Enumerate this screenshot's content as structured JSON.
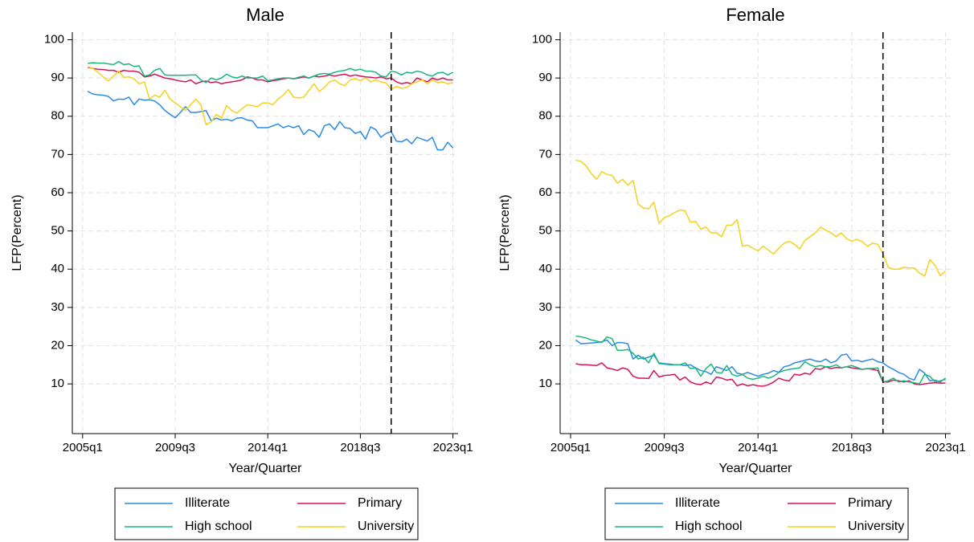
{
  "chart_data": [
    {
      "type": "line",
      "title": "Male",
      "x_label": "Year/Quarter",
      "y_label": "LFP(Percent)",
      "x": [
        2005.25,
        2005.5,
        2005.75,
        2006,
        2006.25,
        2006.5,
        2006.75,
        2007,
        2007.25,
        2007.5,
        2007.75,
        2008,
        2008.25,
        2008.5,
        2008.75,
        2009,
        2009.25,
        2009.5,
        2009.75,
        2010,
        2010.25,
        2010.5,
        2010.75,
        2011,
        2011.25,
        2011.5,
        2011.75,
        2012,
        2012.25,
        2012.5,
        2012.75,
        2013,
        2013.25,
        2013.5,
        2013.75,
        2014,
        2014.25,
        2014.5,
        2014.75,
        2015,
        2015.25,
        2015.5,
        2015.75,
        2016,
        2016.25,
        2016.5,
        2016.75,
        2017,
        2017.25,
        2017.5,
        2017.75,
        2018,
        2018.25,
        2018.5,
        2018.75,
        2019,
        2019.25,
        2019.5,
        2019.75,
        2020,
        2020.25,
        2020.5,
        2020.75,
        2021,
        2021.25,
        2021.5,
        2021.75,
        2022,
        2022.25,
        2022.5,
        2022.75,
        2023
      ],
      "xlim": [
        2004.5,
        2023.25
      ],
      "xticks": [
        {
          "value": 2005,
          "label": "2005q1"
        },
        {
          "value": 2009.5,
          "label": "2009q3"
        },
        {
          "value": 2014,
          "label": "2014q1"
        },
        {
          "value": 2018.5,
          "label": "2018q3"
        },
        {
          "value": 2023,
          "label": "2023q1"
        }
      ],
      "ylim": [
        -3,
        102
      ],
      "yticks": [
        10,
        20,
        30,
        40,
        50,
        60,
        70,
        80,
        90,
        100
      ],
      "grid": true,
      "vline": 2020,
      "series": [
        {
          "name": "Illiterate",
          "color": "#2a8ae8",
          "values": [
            86.5,
            85.8,
            85.6,
            85.5,
            85.2,
            84.0,
            84.5,
            84.4,
            85.0,
            83.0,
            84.5,
            84.2,
            84.3,
            84.0,
            83.0,
            81.5,
            80.5,
            79.6,
            81.0,
            82.5,
            81.0,
            81.0,
            81.2,
            81.5,
            78.8,
            79.5,
            79.0,
            79.2,
            78.8,
            79.5,
            79.6,
            79.0,
            78.8,
            77.0,
            77.0,
            77.0,
            77.5,
            78.0,
            77.0,
            77.5,
            77.0,
            77.5,
            75.2,
            76.5,
            76.0,
            74.5,
            77.5,
            78.0,
            76.5,
            78.6,
            77.0,
            76.8,
            75.5,
            76.0,
            74.0,
            77.2,
            76.5,
            74.5,
            75.5,
            76.0,
            73.5,
            73.3,
            74.0,
            72.8,
            74.5,
            74.0,
            73.5,
            74.5,
            71.2,
            71.2,
            73.2,
            71.7
          ]
        },
        {
          "name": "Primary",
          "color": "#d4145a",
          "values": [
            92.8,
            92.5,
            92.3,
            92.2,
            92.0,
            92.0,
            91.5,
            92.0,
            91.8,
            91.8,
            91.5,
            90.3,
            90.5,
            91.0,
            90.5,
            90.0,
            89.8,
            89.5,
            89.2,
            89.0,
            89.5,
            88.5,
            89.0,
            89.2,
            88.8,
            89.0,
            88.5,
            88.8,
            89.0,
            89.2,
            89.5,
            90.3,
            90.0,
            89.5,
            89.5,
            89.0,
            89.3,
            89.5,
            89.8,
            90.0,
            89.8,
            90.0,
            90.3,
            90.0,
            90.5,
            90.3,
            90.5,
            90.8,
            90.5,
            90.8,
            91.0,
            90.5,
            90.8,
            90.5,
            90.3,
            90.2,
            90.0,
            90.3,
            89.8,
            90.0,
            89.0,
            88.5,
            88.8,
            88.5,
            90.0,
            89.5,
            89.0,
            90.0,
            89.5,
            90.0,
            89.5,
            89.5
          ]
        },
        {
          "name": "High school",
          "color": "#17b87a",
          "values": [
            93.8,
            94.0,
            93.9,
            93.9,
            93.7,
            93.5,
            94.3,
            93.5,
            93.7,
            93.0,
            93.2,
            90.5,
            90.8,
            92.0,
            92.5,
            90.8,
            90.7,
            90.7,
            90.7,
            90.7,
            90.8,
            90.8,
            89.5,
            88.8,
            90.0,
            89.5,
            90.0,
            91.0,
            90.3,
            90.0,
            90.5,
            90.0,
            90.0,
            90.0,
            90.5,
            89.3,
            89.5,
            89.8,
            90.0,
            90.0,
            89.8,
            90.2,
            90.5,
            90.0,
            90.5,
            91.0,
            91.2,
            91.0,
            91.5,
            91.8,
            92.0,
            92.5,
            92.0,
            92.3,
            91.8,
            91.8,
            91.5,
            90.5,
            90.3,
            91.8,
            91.5,
            90.8,
            91.5,
            91.3,
            91.8,
            91.5,
            90.8,
            90.5,
            91.3,
            91.5,
            90.8,
            91.5
          ]
        },
        {
          "name": "University",
          "color": "#f5d21c",
          "values": [
            93.0,
            92.5,
            91.5,
            90.3,
            89.2,
            90.5,
            91.8,
            90.2,
            90.3,
            89.8,
            88.5,
            89.0,
            84.5,
            85.5,
            85.0,
            86.8,
            84.5,
            83.5,
            82.5,
            81.5,
            83.0,
            84.5,
            83.0,
            77.8,
            78.5,
            80.5,
            79.5,
            82.8,
            81.5,
            80.8,
            82.0,
            83.0,
            82.8,
            82.5,
            83.5,
            83.5,
            83.0,
            84.5,
            85.5,
            87.0,
            85.0,
            84.8,
            85.0,
            86.8,
            88.5,
            86.5,
            87.5,
            89.0,
            89.5,
            88.5,
            88.0,
            89.5,
            89.8,
            89.3,
            90.0,
            89.0,
            89.5,
            89.0,
            88.7,
            87.0,
            87.8,
            87.3,
            87.5,
            88.5,
            89.0,
            89.5,
            88.5,
            89.5,
            88.8,
            89.0,
            88.5,
            88.8
          ]
        }
      ]
    },
    {
      "type": "line",
      "title": "Female",
      "x_label": "Year/Quarter",
      "y_label": "LFP(Percent)",
      "x": [
        2005.25,
        2005.5,
        2005.75,
        2006,
        2006.25,
        2006.5,
        2006.75,
        2007,
        2007.25,
        2007.5,
        2007.75,
        2008,
        2008.25,
        2008.5,
        2008.75,
        2009,
        2009.25,
        2009.5,
        2009.75,
        2010,
        2010.25,
        2010.5,
        2010.75,
        2011,
        2011.25,
        2011.5,
        2011.75,
        2012,
        2012.25,
        2012.5,
        2012.75,
        2013,
        2013.25,
        2013.5,
        2013.75,
        2014,
        2014.25,
        2014.5,
        2014.75,
        2015,
        2015.25,
        2015.5,
        2015.75,
        2016,
        2016.25,
        2016.5,
        2016.75,
        2017,
        2017.25,
        2017.5,
        2017.75,
        2018,
        2018.25,
        2018.5,
        2018.75,
        2019,
        2019.25,
        2019.5,
        2019.75,
        2020,
        2020.25,
        2020.5,
        2020.75,
        2021,
        2021.25,
        2021.5,
        2021.75,
        2022,
        2022.25,
        2022.5,
        2022.75,
        2023
      ],
      "xlim": [
        2004.5,
        2023.25
      ],
      "xticks": [
        {
          "value": 2005,
          "label": "2005q1"
        },
        {
          "value": 2009.5,
          "label": "2009q3"
        },
        {
          "value": 2014,
          "label": "2014q1"
        },
        {
          "value": 2018.5,
          "label": "2018q3"
        },
        {
          "value": 2023,
          "label": "2023q1"
        }
      ],
      "ylim": [
        -3,
        102
      ],
      "yticks": [
        10,
        20,
        30,
        40,
        50,
        60,
        70,
        80,
        90,
        100
      ],
      "grid": true,
      "vline": 2020,
      "series": [
        {
          "name": "Illiterate",
          "color": "#2a8ae8",
          "values": [
            21.5,
            20.5,
            20.6,
            20.7,
            20.8,
            21.0,
            21.5,
            20.0,
            20.8,
            20.8,
            20.5,
            16.5,
            17.5,
            16.5,
            17.0,
            17.5,
            15.5,
            15.3,
            15.2,
            15.0,
            15.0,
            14.8,
            15.0,
            14.2,
            13.5,
            13.2,
            12.5,
            14.5,
            14.0,
            13.5,
            14.5,
            12.8,
            12.5,
            13.0,
            12.5,
            12.0,
            12.5,
            12.8,
            13.5,
            13.0,
            14.5,
            14.8,
            15.5,
            15.8,
            16.2,
            16.5,
            16.0,
            15.8,
            16.5,
            15.5,
            16.0,
            17.5,
            17.8,
            16.0,
            16.2,
            15.8,
            16.2,
            16.5,
            15.8,
            15.5,
            14.5,
            13.8,
            13.0,
            12.5,
            11.5,
            11.0,
            13.8,
            12.8,
            10.8,
            11.0,
            10.5,
            11.5
          ]
        },
        {
          "name": "Primary",
          "color": "#d4145a",
          "values": [
            15.3,
            15.0,
            15.0,
            14.9,
            14.8,
            15.5,
            14.2,
            13.9,
            13.5,
            14.2,
            13.8,
            12.0,
            11.5,
            11.5,
            11.4,
            13.5,
            11.8,
            12.2,
            12.3,
            12.5,
            11.0,
            11.8,
            10.5,
            10.0,
            9.8,
            10.5,
            10.0,
            11.8,
            11.5,
            11.0,
            11.2,
            9.5,
            10.0,
            9.5,
            9.8,
            9.5,
            9.4,
            9.8,
            10.5,
            11.5,
            11.0,
            10.8,
            12.5,
            12.3,
            12.8,
            12.5,
            14.0,
            13.8,
            14.5,
            14.0,
            14.3,
            14.2,
            14.5,
            14.2,
            14.0,
            13.8,
            14.0,
            13.8,
            13.5,
            10.5,
            10.5,
            11.0,
            10.8,
            10.5,
            10.8,
            10.0,
            9.8,
            10.0,
            10.2,
            10.3,
            10.2,
            10.2
          ]
        },
        {
          "name": "High school",
          "color": "#17b87a",
          "values": [
            22.5,
            22.3,
            22.0,
            21.5,
            21.2,
            20.8,
            22.3,
            21.8,
            18.8,
            18.8,
            19.0,
            18.0,
            16.5,
            17.0,
            15.5,
            18.0,
            15.3,
            15.2,
            15.0,
            15.0,
            15.0,
            15.5,
            14.0,
            14.2,
            12.0,
            14.0,
            15.2,
            13.0,
            12.8,
            14.8,
            12.5,
            12.0,
            12.5,
            11.5,
            11.2,
            11.5,
            12.0,
            11.5,
            12.0,
            13.0,
            13.5,
            13.8,
            14.0,
            14.2,
            15.8,
            15.0,
            14.5,
            14.8,
            14.5,
            14.5,
            15.0,
            14.2,
            14.5,
            14.8,
            14.3,
            13.8,
            14.0,
            14.0,
            14.2,
            10.5,
            10.8,
            11.5,
            10.5,
            10.8,
            10.5,
            10.3,
            10.0,
            12.5,
            12.0,
            10.5,
            10.8,
            11.2
          ]
        },
        {
          "name": "University",
          "color": "#f5d21c",
          "values": [
            68.5,
            68.2,
            67.0,
            65.0,
            63.5,
            65.5,
            64.8,
            64.5,
            62.5,
            63.5,
            62.0,
            63.2,
            57.0,
            56.0,
            55.8,
            57.5,
            52.0,
            53.5,
            54.0,
            54.8,
            55.5,
            55.3,
            52.3,
            52.5,
            50.5,
            51.0,
            49.5,
            49.5,
            48.5,
            51.5,
            51.5,
            53.0,
            46.0,
            46.3,
            45.5,
            44.8,
            46.0,
            45.0,
            44.0,
            45.5,
            46.8,
            47.3,
            46.5,
            45.3,
            47.5,
            48.5,
            49.5,
            51.0,
            50.2,
            49.5,
            48.5,
            49.5,
            48.0,
            47.3,
            47.8,
            47.2,
            46.0,
            46.8,
            46.5,
            44.0,
            40.5,
            40.0,
            40.0,
            40.5,
            40.3,
            40.3,
            39.0,
            38.2,
            42.5,
            41.0,
            38.3,
            39.5
          ]
        }
      ]
    }
  ]
}
